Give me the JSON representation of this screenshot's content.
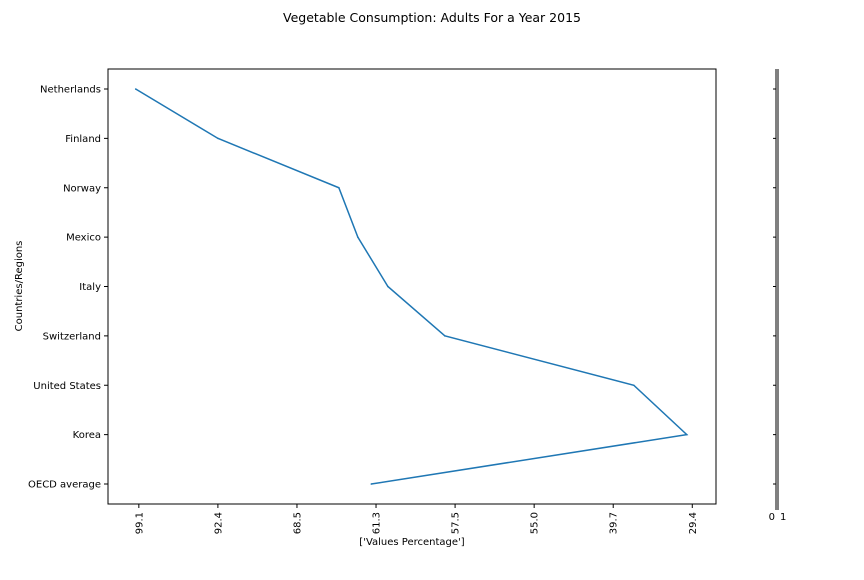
{
  "chart_data": {
    "type": "line",
    "title": "Vegetable Consumption: Adults For a Year 2015",
    "xlabel": "['Values Percentage']",
    "ylabel": "Countries/Regions",
    "x_tick_labels": [
      "99.1",
      "92.4",
      "68.5",
      "61.3",
      "57.5",
      "55.0",
      "39.7",
      "29.4"
    ],
    "x_tick_positions": [
      0,
      1,
      2,
      3,
      4,
      5,
      6,
      7
    ],
    "xlim": [
      -0.39,
      7.3
    ],
    "categories": [
      "Netherlands",
      "Finland",
      "Norway",
      "Mexico",
      "Italy",
      "Switzerland",
      "United States",
      "Korea",
      "OECD average"
    ],
    "series": [
      {
        "name": "Values Percentage",
        "x": [
          -0.04,
          1.0,
          2.53,
          2.77,
          3.15,
          3.87,
          6.26,
          6.93,
          2.94
        ],
        "color": "#1f77b4"
      }
    ],
    "grid": false,
    "secondary_axis": {
      "tick_labels": [
        "0",
        "1"
      ]
    }
  }
}
